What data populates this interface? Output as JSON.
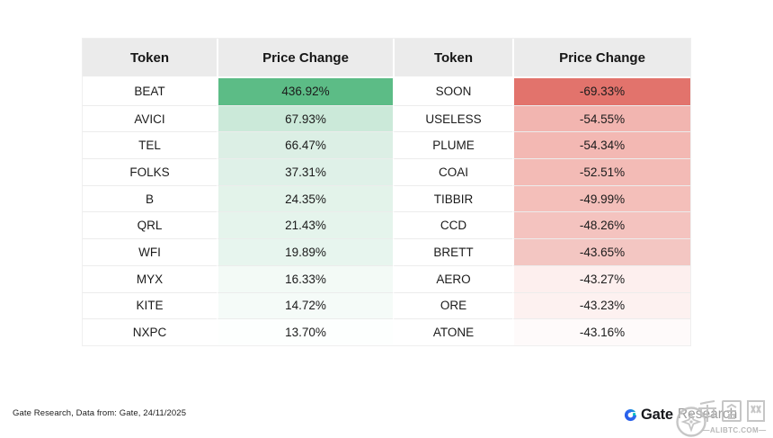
{
  "table": {
    "headers": [
      "Token",
      "Price Change",
      "Token",
      "Price Change"
    ],
    "rows": [
      {
        "gainer": "BEAT",
        "gain": "436.92%",
        "gain_bg": "#5CBC86",
        "loser": "SOON",
        "loss": "-69.33%",
        "loss_bg": "#E2736C"
      },
      {
        "gainer": "AVICI",
        "gain": "67.93%",
        "gain_bg": "#CBE9D9",
        "loser": "USELESS",
        "loss": "-54.55%",
        "loss_bg": "#F2B5B0"
      },
      {
        "gainer": "TEL",
        "gain": "66.47%",
        "gain_bg": "#DCEFE5",
        "loser": "PLUME",
        "loss": "-54.34%",
        "loss_bg": "#F3B8B3"
      },
      {
        "gainer": "FOLKS",
        "gain": "37.31%",
        "gain_bg": "#DFF1E8",
        "loser": "COAI",
        "loss": "-52.51%",
        "loss_bg": "#F3BBB6"
      },
      {
        "gainer": "B",
        "gain": "24.35%",
        "gain_bg": "#E3F3EA",
        "loser": "TIBBIR",
        "loss": "-49.99%",
        "loss_bg": "#F4BFBA"
      },
      {
        "gainer": "QRL",
        "gain": "21.43%",
        "gain_bg": "#E5F4EC",
        "loser": "CCD",
        "loss": "-48.26%",
        "loss_bg": "#F4C3BF"
      },
      {
        "gainer": "WFI",
        "gain": "19.89%",
        "gain_bg": "#E7F5EE",
        "loser": "BRETT",
        "loss": "-43.65%",
        "loss_bg": "#F3C6C2"
      },
      {
        "gainer": "MYX",
        "gain": "16.33%",
        "gain_bg": "#F3FAF6",
        "loser": "AERO",
        "loss": "-43.27%",
        "loss_bg": "#FDEFEE"
      },
      {
        "gainer": "KITE",
        "gain": "14.72%",
        "gain_bg": "#F5FBF8",
        "loser": "ORE",
        "loss": "-43.23%",
        "loss_bg": "#FDF1F0"
      },
      {
        "gainer": "NXPC",
        "gain": "13.70%",
        "gain_bg": "#FDFFFE",
        "loser": "ATONE",
        "loss": "-43.16%",
        "loss_bg": "#FEFAFA"
      }
    ]
  },
  "chart_data": {
    "type": "table",
    "title": "",
    "columns": [
      "Token",
      "Price Change",
      "Token",
      "Price Change"
    ],
    "gainers": [
      {
        "token": "BEAT",
        "change_pct": 436.92
      },
      {
        "token": "AVICI",
        "change_pct": 67.93
      },
      {
        "token": "TEL",
        "change_pct": 66.47
      },
      {
        "token": "FOLKS",
        "change_pct": 37.31
      },
      {
        "token": "B",
        "change_pct": 24.35
      },
      {
        "token": "QRL",
        "change_pct": 21.43
      },
      {
        "token": "WFI",
        "change_pct": 19.89
      },
      {
        "token": "MYX",
        "change_pct": 16.33
      },
      {
        "token": "KITE",
        "change_pct": 14.72
      },
      {
        "token": "NXPC",
        "change_pct": 13.7
      }
    ],
    "losers": [
      {
        "token": "SOON",
        "change_pct": -69.33
      },
      {
        "token": "USELESS",
        "change_pct": -54.55
      },
      {
        "token": "PLUME",
        "change_pct": -54.34
      },
      {
        "token": "COAI",
        "change_pct": -52.51
      },
      {
        "token": "TIBBIR",
        "change_pct": -49.99
      },
      {
        "token": "CCD",
        "change_pct": -48.26
      },
      {
        "token": "BRETT",
        "change_pct": -43.65
      },
      {
        "token": "AERO",
        "change_pct": -43.27
      },
      {
        "token": "ORE",
        "change_pct": -43.23
      },
      {
        "token": "ATONE",
        "change_pct": -43.16
      }
    ],
    "layout_hints": {
      "header_bg": "#EBEBEB",
      "positive_color": "#5CBC86",
      "negative_color": "#E2736C",
      "gradient_by_magnitude": true
    }
  },
  "footer": {
    "source_note": "Gate Research, Data from: Gate, 24/11/2025",
    "brand_name": "Gate",
    "brand_suffix": "Research"
  },
  "watermark": {
    "cn_text": "币圈网",
    "site": "—ALIBTC.COM—"
  },
  "colors": {
    "background": "#FFFFFF",
    "header_bg": "#EBEBEB",
    "strong_green": "#5CBC86",
    "strong_red": "#E2736C",
    "logo_blue": "#2354E6",
    "logo_teal": "#00BEC3",
    "watermark_gray": "#B9B9B9"
  }
}
